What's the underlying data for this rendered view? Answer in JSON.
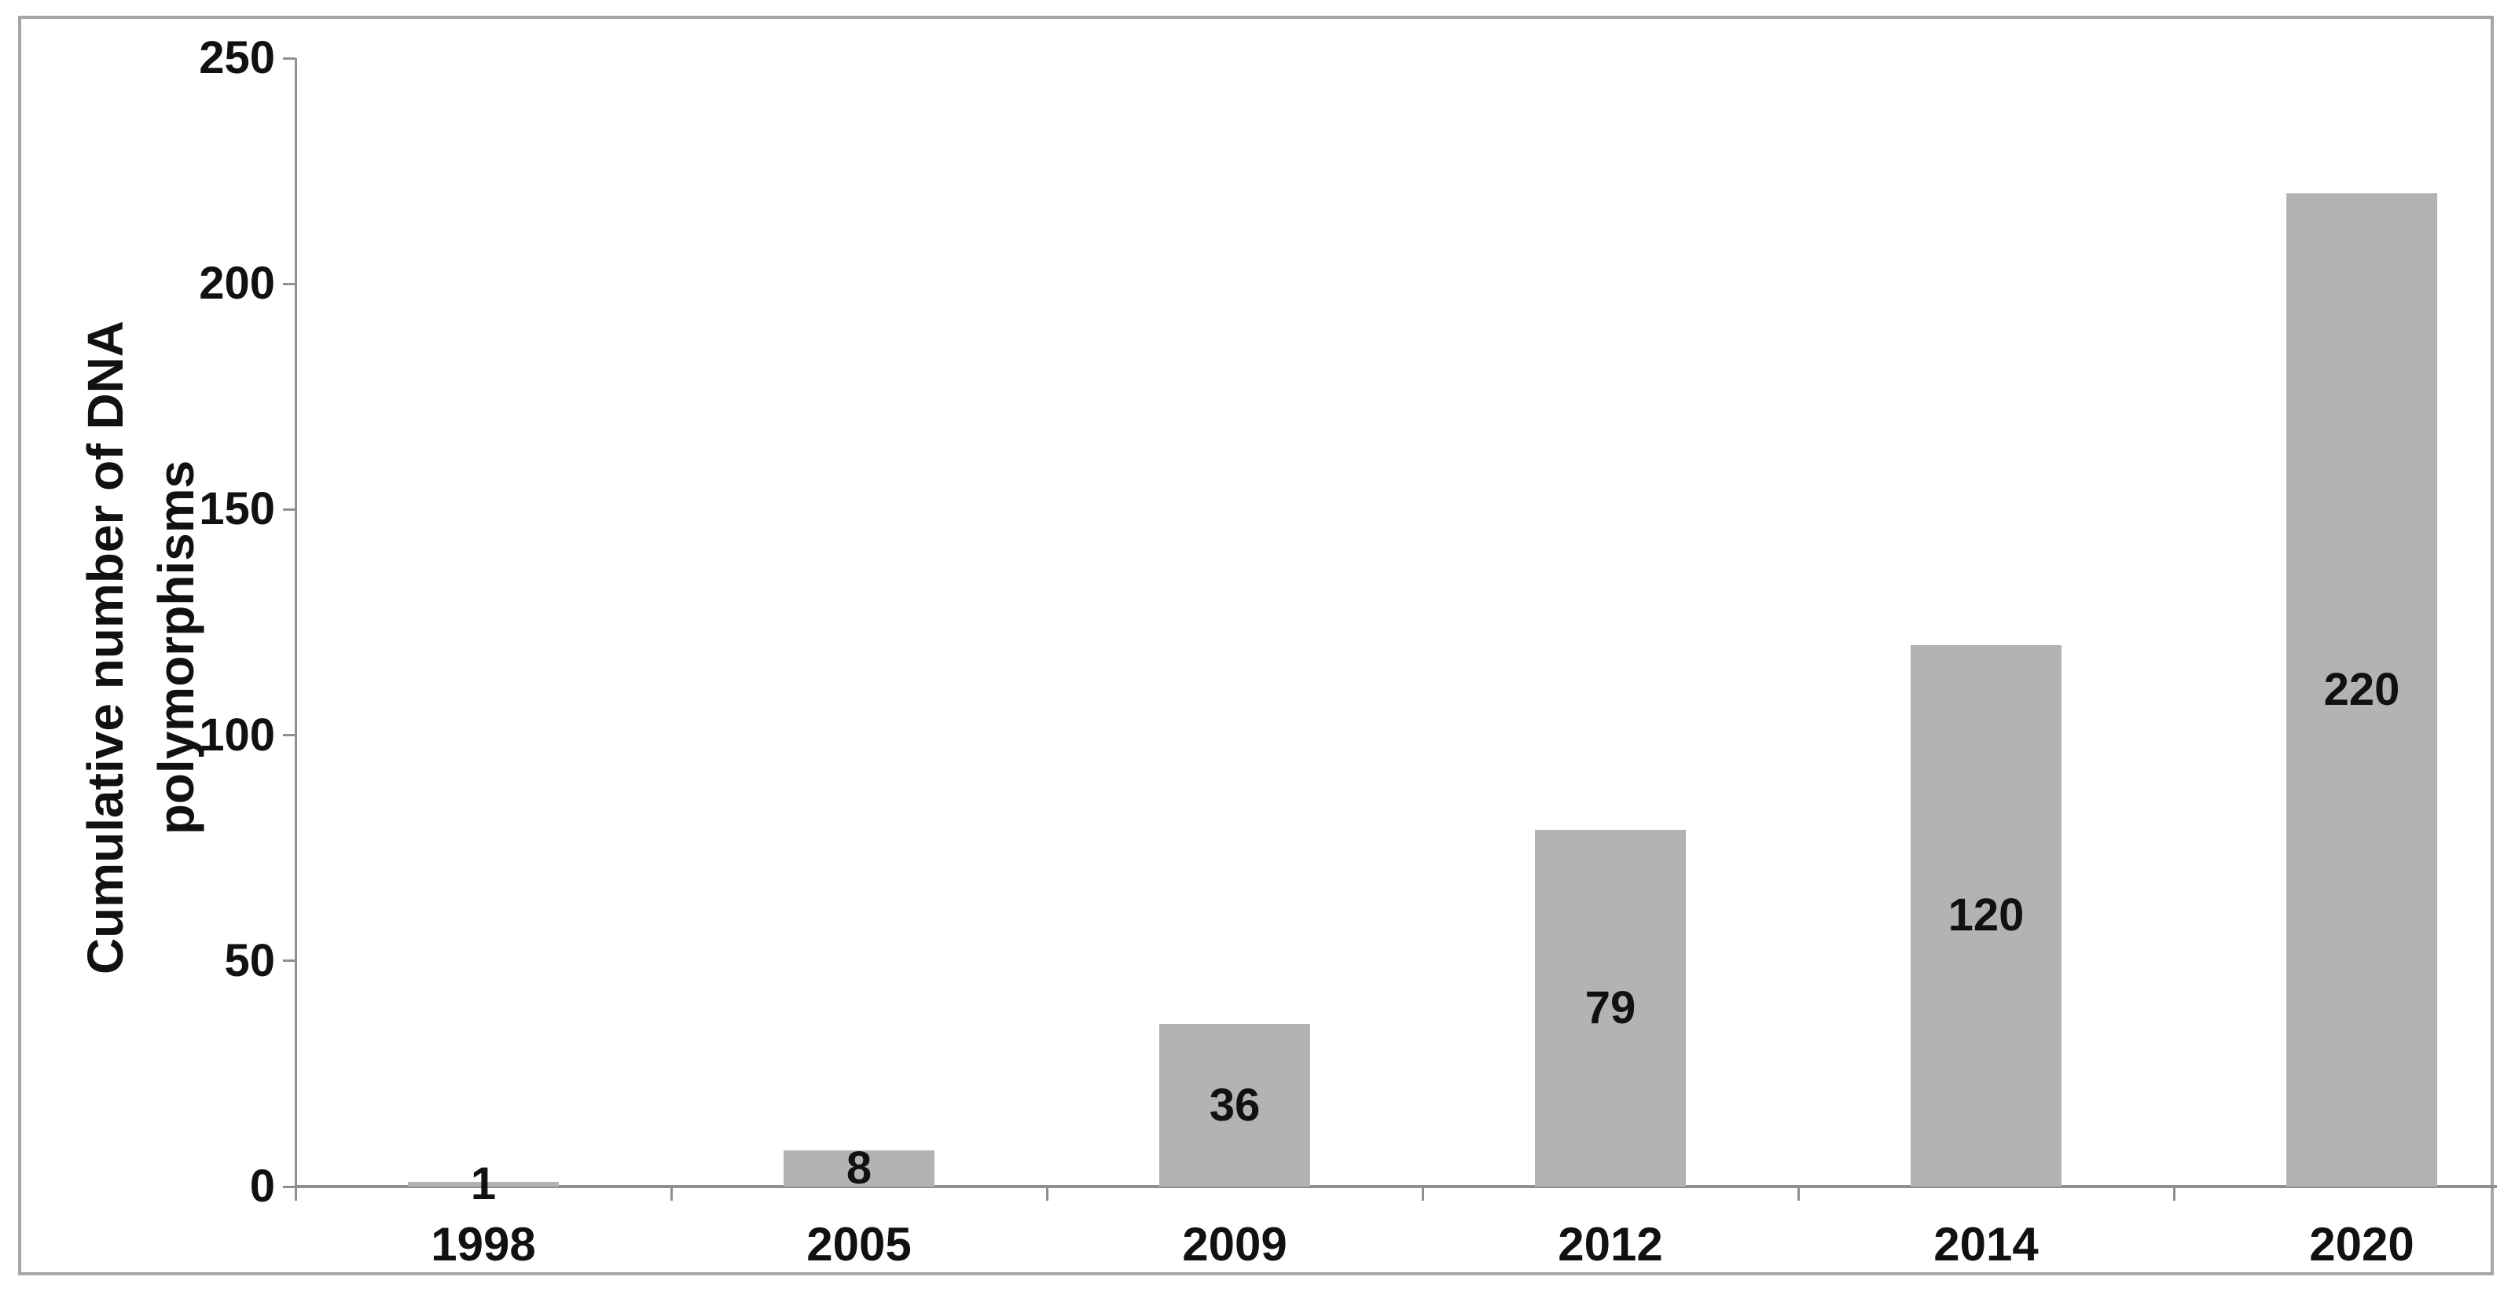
{
  "chart_data": {
    "type": "bar",
    "categories": [
      "1998",
      "2005",
      "2009",
      "2012",
      "2014",
      "2020"
    ],
    "values": [
      1,
      8,
      36,
      79,
      120,
      220
    ],
    "data_labels": [
      "1",
      "8",
      "36",
      "79",
      "120",
      "220"
    ],
    "data_label_position": "center-inside",
    "title": "",
    "xlabel": "",
    "ylabel": "Cumulative number of DNA polymorphisms",
    "ylabel_lines": [
      "Cumulative number of DNA",
      "polymorphisms"
    ],
    "yticks": [
      0,
      50,
      100,
      150,
      200,
      250
    ],
    "ylim": [
      0,
      250
    ],
    "grid": "off",
    "legend": "none",
    "bar_color": "#b3b3b3",
    "axis_color": "#8f8f8f",
    "border_color": "#a6a6a6",
    "text_color": "#111111"
  }
}
